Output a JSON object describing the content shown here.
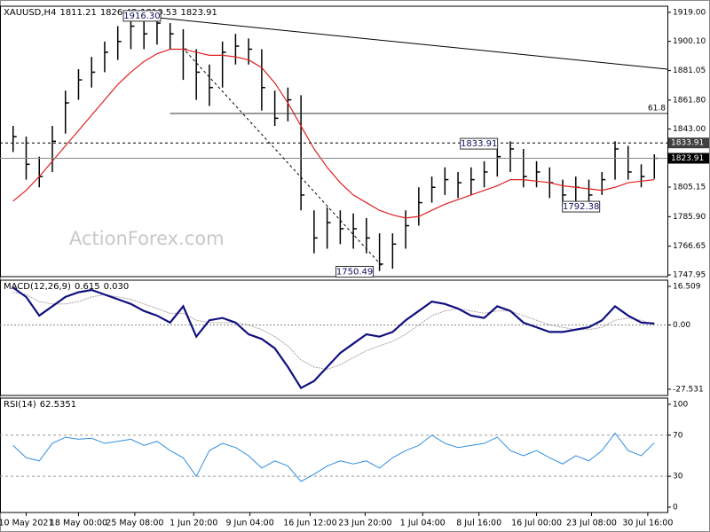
{
  "chart_data": [
    {
      "type": "hlc",
      "title": "XAUUSD,H4",
      "readout": [
        1811.21,
        1826.48,
        1810.53,
        1823.91
      ],
      "watermark": "ActionForex.com",
      "xlim": [
        -1,
        50
      ],
      "ylim": [
        1746.8,
        1923.0
      ],
      "yticks": [
        {
          "value": 1919,
          "label": "1919.00"
        },
        {
          "value": 1900.1,
          "label": "1900.10"
        },
        {
          "value": 1881.05,
          "label": "1881.05"
        },
        {
          "value": 1861.8,
          "label": "1861.80"
        },
        {
          "value": 1843,
          "label": "1843.00"
        },
        {
          "value": 1805.15,
          "label": "1805.15"
        },
        {
          "value": 1785.9,
          "label": "1785.90"
        },
        {
          "value": 1766.65,
          "label": "1766.65"
        },
        {
          "value": 1747.95,
          "label": "1747.95"
        }
      ],
      "bar_color": "#000000",
      "high": [
        1845,
        1838,
        1825,
        1845,
        1868,
        1882,
        1890,
        1900,
        1910,
        1916.3,
        1914,
        1916,
        1912,
        1908,
        1895,
        1885,
        1900,
        1905,
        1902,
        1895,
        1868,
        1870,
        1865,
        1790,
        1792,
        1790,
        1788,
        1785,
        1775,
        1775,
        1790,
        1805,
        1812,
        1818,
        1815,
        1818,
        1822,
        1830,
        1835,
        1830,
        1822,
        1818,
        1810,
        1812,
        1810,
        1815,
        1835,
        1832,
        1820,
        1826.48
      ],
      "low": [
        1828,
        1810,
        1805,
        1815,
        1840,
        1862,
        1870,
        1880,
        1888,
        1895,
        1895,
        1898,
        1895,
        1875,
        1862,
        1858,
        1870,
        1885,
        1885,
        1855,
        1845,
        1848,
        1790,
        1762,
        1765,
        1768,
        1765,
        1762,
        1750.49,
        1752,
        1765,
        1780,
        1795,
        1800,
        1798,
        1800,
        1805,
        1812,
        1815,
        1805,
        1805,
        1798,
        1792.38,
        1795,
        1795,
        1800,
        1810,
        1810,
        1805,
        1810.53
      ],
      "close": [
        1838,
        1820,
        1812,
        1835,
        1860,
        1875,
        1880,
        1893,
        1900,
        1910,
        1905,
        1912,
        1905,
        1895,
        1880,
        1870,
        1893,
        1897,
        1895,
        1870,
        1850,
        1862,
        1800,
        1772,
        1782,
        1778,
        1778,
        1772,
        1755,
        1768,
        1780,
        1795,
        1805,
        1810,
        1808,
        1810,
        1815,
        1825,
        1830,
        1812,
        1815,
        1808,
        1800,
        1805,
        1800,
        1810,
        1830,
        1815,
        1812,
        1823.91
      ],
      "ma": {
        "color": "#e02020",
        "values": [
          1796,
          1803,
          1812,
          1822,
          1832,
          1842,
          1852,
          1862,
          1872,
          1880,
          1887,
          1892,
          1895,
          1895,
          1893,
          1891,
          1891,
          1890,
          1888,
          1883,
          1873,
          1860,
          1845,
          1830,
          1818,
          1808,
          1800,
          1795,
          1790,
          1787,
          1785,
          1786,
          1790,
          1794,
          1797,
          1800,
          1803,
          1806,
          1810,
          1810,
          1809,
          1808,
          1806,
          1805,
          1804,
          1803,
          1805,
          1808,
          1809,
          1810
        ]
      },
      "levels": [
        {
          "value": 1833.91,
          "style": "dashed"
        },
        {
          "value": 1823.91,
          "style": "solid"
        }
      ],
      "fib": {
        "ratio": 61.8,
        "price": 1853.1,
        "x_from": 12
      },
      "trendlines": [
        {
          "points": [
            [
              9,
              1917.3
            ],
            [
              50,
              1882
            ]
          ],
          "style": "solid"
        },
        {
          "points": [
            [
              13.2,
              1893.6
            ],
            [
              28.2,
              1753.7
            ]
          ],
          "style": "dashed"
        }
      ],
      "annotations": [
        {
          "value": 1916.7,
          "label": "1916.30",
          "x": 9.85
        },
        {
          "value": 1750,
          "label": "1750.49",
          "x": 26.1
        },
        {
          "value": 1833.4,
          "label": "1833.91",
          "x": 35.6
        },
        {
          "value": 1792.4,
          "label": "1792.38",
          "x": 43.4
        }
      ]
    },
    {
      "type": "macd",
      "title": "MACD(12,26,9)",
      "readout": [
        0.615,
        {
          "value": 0.03,
          "label": "0.030"
        }
      ],
      "xlim": [
        -1,
        50
      ],
      "ylim": [
        -30.19,
        19.17
      ],
      "yticks": [
        16.509,
        {
          "value": 0,
          "label": "0.00"
        },
        -27.531
      ],
      "main": {
        "color": "#101080",
        "values": [
          16,
          12,
          4,
          8,
          12,
          14,
          15,
          13,
          11,
          9,
          6,
          4,
          1,
          8,
          -5,
          2,
          3,
          1,
          -4,
          -6,
          -10,
          -18,
          -27,
          -24,
          -18,
          -12,
          -8,
          -4,
          -5,
          -3,
          2,
          6,
          10,
          9,
          7,
          4,
          3,
          8,
          6,
          1,
          -1,
          -3,
          -3,
          -2,
          -1,
          2,
          8,
          4,
          1,
          0.615
        ]
      },
      "signal": {
        "color": "#b0a0a0",
        "values": [
          14,
          13,
          10,
          9,
          9,
          10,
          12,
          13,
          12,
          11,
          9,
          7,
          5,
          5,
          2,
          1,
          1,
          1,
          0,
          -2,
          -5,
          -9,
          -15,
          -18,
          -19,
          -17,
          -14,
          -11,
          -9,
          -7,
          -4,
          0,
          4,
          6,
          7,
          6,
          5,
          6,
          6,
          4,
          2,
          0,
          -1,
          -2,
          -2,
          -1,
          2,
          3,
          2,
          0.03
        ]
      }
    },
    {
      "type": "rsi",
      "title": "RSI(14)",
      "readout": [
        62.5351
      ],
      "xlim": [
        -1,
        50
      ],
      "ylim": [
        -5.2,
        106
      ],
      "yticks": [
        100,
        70,
        30,
        0
      ],
      "levels": [
        70,
        30
      ],
      "line": {
        "color": "#2f8fe0",
        "values": [
          60,
          48,
          45,
          62,
          68,
          66,
          67,
          62,
          64,
          66,
          60,
          64,
          55,
          48,
          30,
          55,
          62,
          58,
          50,
          38,
          45,
          40,
          25,
          32,
          40,
          45,
          42,
          45,
          38,
          48,
          55,
          60,
          70,
          62,
          58,
          60,
          62,
          68,
          55,
          50,
          55,
          48,
          42,
          50,
          45,
          55,
          72,
          55,
          50,
          62.5351
        ]
      },
      "xticks": [
        {
          "value": 1,
          "label": "10 May 2021"
        },
        {
          "value": 5,
          "label": "18 May 00:00"
        },
        {
          "value": 9.3,
          "label": "25 May 08:00"
        },
        {
          "value": 13.8,
          "label": "1 Jun 20:00"
        },
        {
          "value": 18.1,
          "label": "9 Jun 04:00"
        },
        {
          "value": 22.7,
          "label": "16 Jun 12:00"
        },
        {
          "value": 26.9,
          "label": "23 Jun 20:00"
        },
        {
          "value": 31.3,
          "label": "1 Jul 04:00"
        },
        {
          "value": 35.6,
          "label": "8 Jul 16:00"
        },
        {
          "value": 40,
          "label": "16 Jul 00:00"
        },
        {
          "value": 44.2,
          "label": "23 Jul 08:00"
        },
        {
          "value": 48.5,
          "label": "30 Jul 16:00"
        }
      ]
    }
  ]
}
